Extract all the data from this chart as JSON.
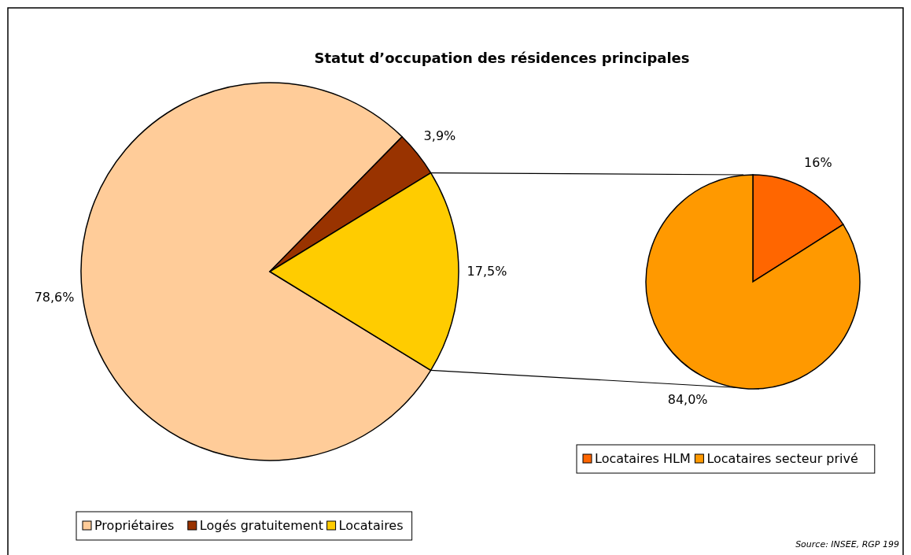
{
  "chart_data": [
    {
      "type": "pie",
      "title": "Statut d’occupation des résidences principales",
      "categories": [
        "Propriétaires",
        "Logés gratuitement",
        "Locataires"
      ],
      "values": [
        78.6,
        3.9,
        17.5
      ],
      "colors": [
        "#ffcc99",
        "#993300",
        "#ffcc00"
      ],
      "value_labels": [
        "78,6%",
        "3,9%",
        "17,5%"
      ],
      "legend": "bottom left",
      "annotations": [
        "Source: INSEE, RGP 199"
      ]
    },
    {
      "type": "pie",
      "categories": [
        "Locataires HLM",
        "Locataires secteur privé"
      ],
      "values": [
        16,
        84.0
      ],
      "colors": [
        "#ff6600",
        "#ff9900"
      ],
      "value_labels": [
        "16%",
        "84,0%"
      ],
      "legend": "bottom"
    }
  ]
}
